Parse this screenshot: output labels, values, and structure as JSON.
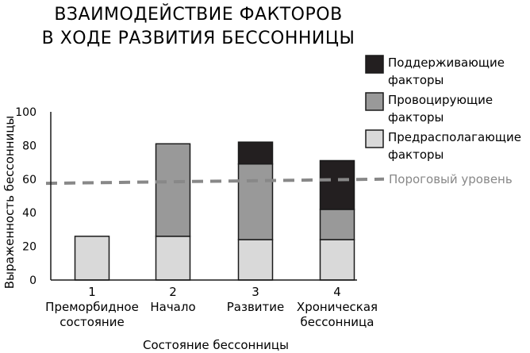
{
  "chart_data": {
    "type": "bar",
    "stacked": true,
    "title": [
      "ВЗАИМОДЕЙСТВИЕ ФАКТОРОВ",
      "В ХОДЕ РАЗВИТИЯ БЕССОННИЦЫ"
    ],
    "xlabel": "Состояние бессонницы",
    "ylabel": "Выраженность бессонницы",
    "ylim": [
      0,
      100
    ],
    "yticks": [
      "0",
      "20",
      "40",
      "60",
      "80",
      "100"
    ],
    "categories": [
      {
        "number": "1",
        "lines": [
          "Преморбидное",
          "состояние"
        ]
      },
      {
        "number": "2",
        "lines": [
          "Начало"
        ]
      },
      {
        "number": "3",
        "lines": [
          "Развитие"
        ]
      },
      {
        "number": "4",
        "lines": [
          "Хроническая",
          "бессонница"
        ]
      }
    ],
    "series": [
      {
        "name": [
          "Предрасполагающие",
          "факторы"
        ],
        "color": "#d9d9d9",
        "values": [
          26,
          26,
          24,
          24
        ]
      },
      {
        "name": [
          "Провоцирующие",
          "факторы"
        ],
        "color": "#999999",
        "values": [
          0,
          55,
          45,
          18
        ]
      },
      {
        "name": [
          "Поддерживающие",
          "факторы"
        ],
        "color": "#231f20",
        "values": [
          0,
          0,
          13,
          29
        ]
      }
    ],
    "threshold": {
      "label": "Пороговый уровень",
      "start": 57.5,
      "end": 60,
      "color": "#888888"
    },
    "legend": "top-right",
    "grid": false
  }
}
